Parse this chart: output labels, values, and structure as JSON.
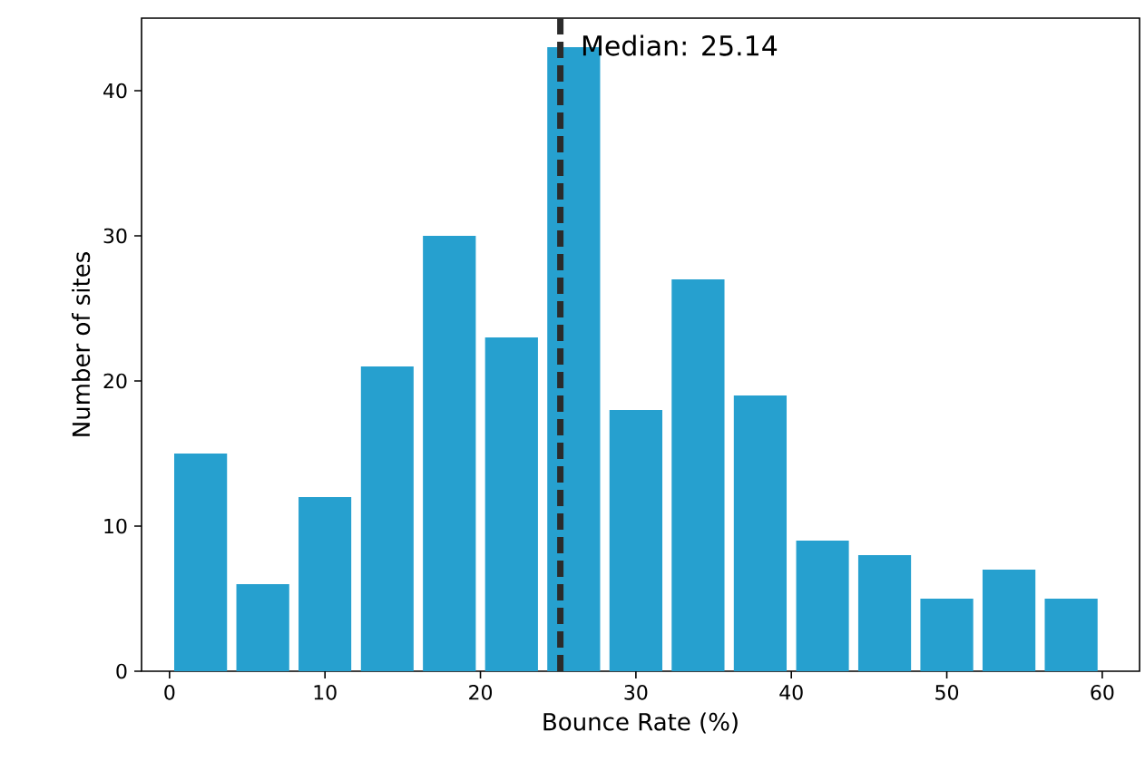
{
  "chart_data": {
    "type": "histogram",
    "xlabel": "Bounce Rate (%)",
    "ylabel": "Number of sites",
    "bins": [
      0,
      4,
      8,
      12,
      16,
      20,
      24,
      28,
      32,
      36,
      40,
      44,
      48,
      52,
      56,
      60
    ],
    "values": [
      15,
      6,
      12,
      21,
      30,
      23,
      43,
      18,
      27,
      19,
      9,
      8,
      5,
      7,
      5
    ],
    "color": "#26a0cf",
    "xlim": [
      -1.8,
      62.4
    ],
    "ylim": [
      0,
      45
    ],
    "xticks": [
      0,
      10,
      20,
      30,
      40,
      50,
      60
    ],
    "yticks": [
      0,
      10,
      20,
      30,
      40
    ],
    "ref_lines": [
      {
        "axis": "x",
        "value": 25.14,
        "label": "Median: 25.14",
        "color": "#2b2b2b",
        "line_style": "dashed"
      }
    ],
    "grid": false
  }
}
